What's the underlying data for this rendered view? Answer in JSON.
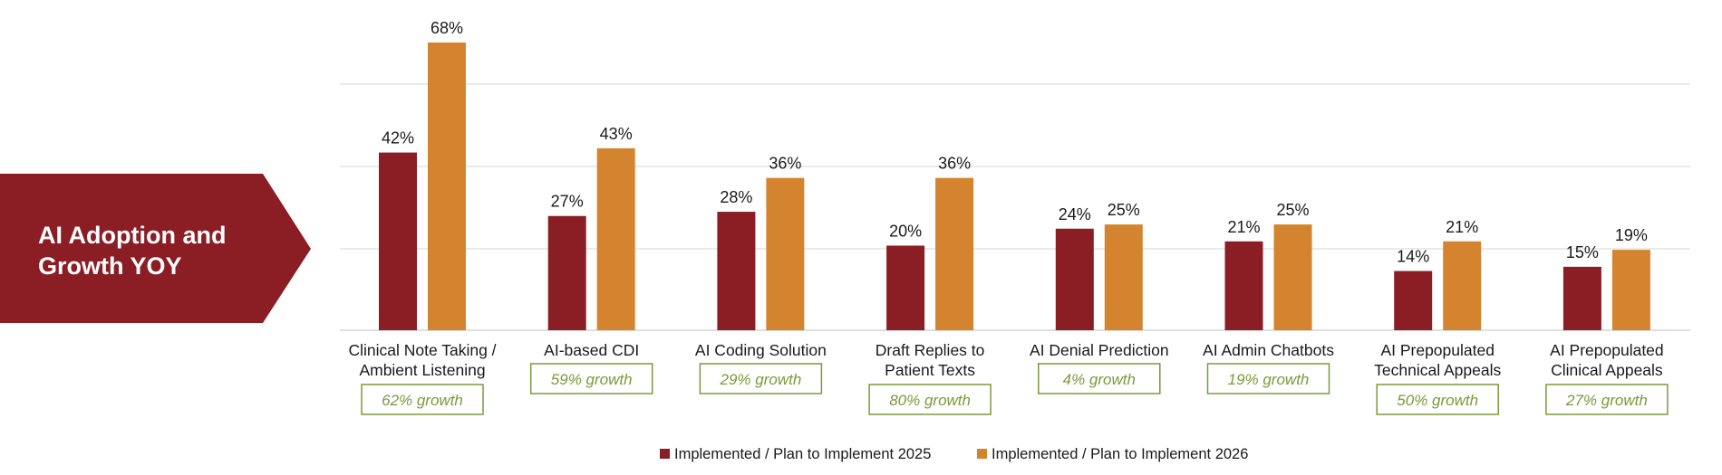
{
  "banner": {
    "lines": [
      "AI Adoption and",
      "Growth YOY"
    ]
  },
  "colors": {
    "series_2025": "#8B1E24",
    "series_2026": "#D4842E",
    "banner": "#8B1E24",
    "growth": "#7A9A3A",
    "grid": "#dddddd"
  },
  "chart_data": {
    "type": "bar",
    "categories": [
      [
        "Clinical Note Taking /",
        "Ambient Listening"
      ],
      [
        "AI-based CDI"
      ],
      [
        "AI Coding Solution"
      ],
      [
        "Draft Replies to",
        "Patient Texts"
      ],
      [
        "AI Denial Prediction"
      ],
      [
        "AI Admin Chatbots"
      ],
      [
        "AI Prepopulated",
        "Technical Appeals"
      ],
      [
        "AI Prepopulated",
        "Clinical Appeals"
      ]
    ],
    "series": [
      {
        "name": "Implemented / Plan to Implement 2025",
        "values": [
          42,
          27,
          28,
          20,
          24,
          21,
          14,
          15
        ],
        "labels": [
          "42%",
          "27%",
          "28%",
          "20%",
          "24%",
          "21%",
          "14%",
          "15%"
        ]
      },
      {
        "name": "Implemented / Plan to Implement 2026",
        "values": [
          68,
          43,
          36,
          36,
          25,
          25,
          21,
          19
        ],
        "labels": [
          "68%",
          "43%",
          "36%",
          "36%",
          "25%",
          "25%",
          "21%",
          "19%"
        ]
      }
    ],
    "growth_labels": [
      "62% growth",
      "59% growth",
      "29% growth",
      "80% growth",
      "4% growth",
      "19% growth",
      "50% growth",
      "27% growth"
    ],
    "ylim": [
      0,
      70
    ],
    "grid": true,
    "legend_position": "bottom"
  }
}
